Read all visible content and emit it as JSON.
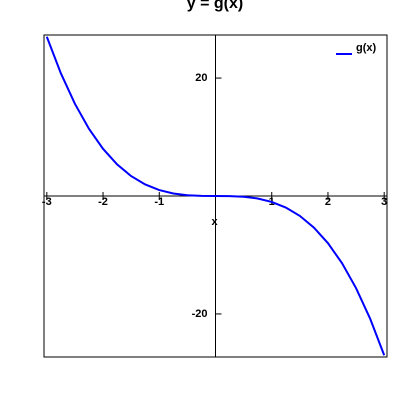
{
  "chart_data": {
    "type": "line",
    "title": "y = g(x)",
    "xlabel": "x",
    "x": [
      -3,
      -2.75,
      -2.5,
      -2.25,
      -2,
      -1.75,
      -1.5,
      -1.25,
      -1,
      -0.75,
      -0.5,
      -0.25,
      0,
      0.25,
      0.5,
      0.75,
      1,
      1.25,
      1.5,
      1.75,
      2,
      2.25,
      2.5,
      2.75,
      3
    ],
    "series": [
      {
        "name": "g(x)",
        "color": "#0000ff",
        "values": [
          27,
          20.797,
          15.625,
          11.391,
          8,
          5.359,
          3.375,
          1.953,
          1,
          0.422,
          0.125,
          0.016,
          0,
          -0.016,
          -0.125,
          -0.422,
          -1,
          -1.953,
          -3.375,
          -5.359,
          -8,
          -11.391,
          -15.625,
          -20.797,
          -27
        ]
      }
    ],
    "xlim": [
      -3.05,
      3.05
    ],
    "ylim": [
      -27.3,
      27.3
    ],
    "xticks": [
      -3,
      -2,
      -1,
      1,
      2,
      3
    ],
    "yticks": [
      -20,
      20
    ],
    "legend": "upper right"
  }
}
